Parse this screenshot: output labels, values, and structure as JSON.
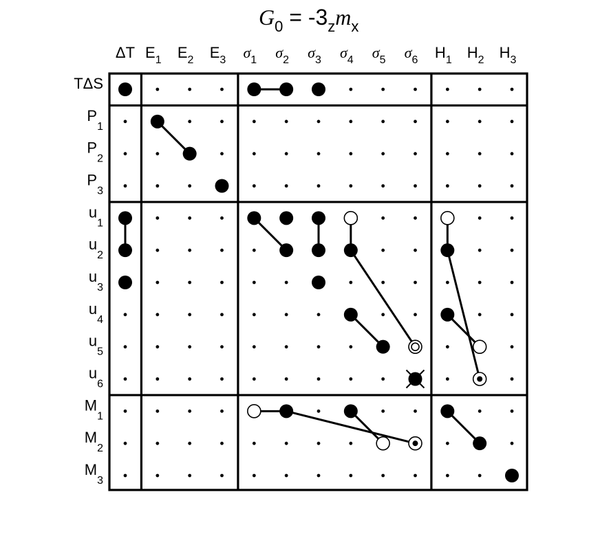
{
  "title": {
    "main": "G",
    "main_sub": "0",
    "eq": " = -3",
    "eq_sub": "z",
    "m": "m",
    "m_sub": "x"
  },
  "columns": [
    {
      "base": "ΔT",
      "sub": "",
      "italic": false
    },
    {
      "base": "E",
      "sub": "1",
      "italic": false
    },
    {
      "base": "E",
      "sub": "2",
      "italic": false
    },
    {
      "base": "E",
      "sub": "3",
      "italic": false
    },
    {
      "base": "σ",
      "sub": "1",
      "italic": true
    },
    {
      "base": "σ",
      "sub": "2",
      "italic": true
    },
    {
      "base": "σ",
      "sub": "3",
      "italic": true
    },
    {
      "base": "σ",
      "sub": "4",
      "italic": true
    },
    {
      "base": "σ",
      "sub": "5",
      "italic": true
    },
    {
      "base": "σ",
      "sub": "6",
      "italic": true
    },
    {
      "base": "H",
      "sub": "1",
      "italic": false
    },
    {
      "base": "H",
      "sub": "2",
      "italic": false
    },
    {
      "base": "H",
      "sub": "3",
      "italic": false
    }
  ],
  "rows": [
    {
      "base": "TΔS",
      "sub": ""
    },
    {
      "base": "P",
      "sub": "1"
    },
    {
      "base": "P",
      "sub": "2"
    },
    {
      "base": "P",
      "sub": "3"
    },
    {
      "base": "u",
      "sub": "1"
    },
    {
      "base": "u",
      "sub": "2"
    },
    {
      "base": "u",
      "sub": "3"
    },
    {
      "base": "u",
      "sub": "4"
    },
    {
      "base": "u",
      "sub": "5"
    },
    {
      "base": "u",
      "sub": "6"
    },
    {
      "base": "M",
      "sub": "1"
    },
    {
      "base": "M",
      "sub": "2"
    },
    {
      "base": "M",
      "sub": "3"
    }
  ],
  "column_groups": [
    [
      0
    ],
    [
      1,
      2,
      3
    ],
    [
      4,
      5,
      6,
      7,
      8,
      9
    ],
    [
      10,
      11,
      12
    ]
  ],
  "row_groups": [
    [
      0
    ],
    [
      1,
      2,
      3
    ],
    [
      4,
      5,
      6,
      7,
      8,
      9
    ],
    [
      10,
      11,
      12
    ]
  ],
  "symbol_legend": {
    "filled": "large filled circle",
    "open": "large open circle",
    "dotted": "open circle with central dot",
    "double": "double concentric circle",
    "crossed": "filled circle with cross",
    "dot": "small dot (zero element)"
  },
  "cells": [
    {
      "row": 0,
      "col": 0,
      "type": "filled"
    },
    {
      "row": 0,
      "col": 4,
      "type": "filled"
    },
    {
      "row": 0,
      "col": 5,
      "type": "filled"
    },
    {
      "row": 0,
      "col": 6,
      "type": "filled"
    },
    {
      "row": 1,
      "col": 1,
      "type": "filled"
    },
    {
      "row": 2,
      "col": 2,
      "type": "filled"
    },
    {
      "row": 3,
      "col": 3,
      "type": "filled"
    },
    {
      "row": 4,
      "col": 0,
      "type": "filled"
    },
    {
      "row": 5,
      "col": 0,
      "type": "filled"
    },
    {
      "row": 6,
      "col": 0,
      "type": "filled"
    },
    {
      "row": 4,
      "col": 4,
      "type": "filled"
    },
    {
      "row": 4,
      "col": 5,
      "type": "filled"
    },
    {
      "row": 4,
      "col": 6,
      "type": "filled"
    },
    {
      "row": 4,
      "col": 7,
      "type": "open"
    },
    {
      "row": 5,
      "col": 5,
      "type": "filled"
    },
    {
      "row": 5,
      "col": 6,
      "type": "filled"
    },
    {
      "row": 5,
      "col": 7,
      "type": "filled"
    },
    {
      "row": 6,
      "col": 6,
      "type": "filled"
    },
    {
      "row": 7,
      "col": 7,
      "type": "filled"
    },
    {
      "row": 8,
      "col": 8,
      "type": "filled"
    },
    {
      "row": 8,
      "col": 9,
      "type": "double"
    },
    {
      "row": 9,
      "col": 9,
      "type": "crossed"
    },
    {
      "row": 4,
      "col": 10,
      "type": "open"
    },
    {
      "row": 5,
      "col": 10,
      "type": "filled"
    },
    {
      "row": 7,
      "col": 10,
      "type": "filled"
    },
    {
      "row": 8,
      "col": 11,
      "type": "open"
    },
    {
      "row": 9,
      "col": 11,
      "type": "dotted"
    },
    {
      "row": 10,
      "col": 4,
      "type": "open"
    },
    {
      "row": 10,
      "col": 5,
      "type": "filled"
    },
    {
      "row": 10,
      "col": 7,
      "type": "filled"
    },
    {
      "row": 11,
      "col": 8,
      "type": "open"
    },
    {
      "row": 11,
      "col": 9,
      "type": "dotted"
    },
    {
      "row": 10,
      "col": 10,
      "type": "filled"
    },
    {
      "row": 11,
      "col": 11,
      "type": "filled"
    },
    {
      "row": 12,
      "col": 12,
      "type": "filled"
    }
  ],
  "connections": [
    {
      "from": [
        0,
        4
      ],
      "to": [
        0,
        5
      ]
    },
    {
      "from": [
        1,
        1
      ],
      "to": [
        2,
        2
      ]
    },
    {
      "from": [
        4,
        0
      ],
      "to": [
        5,
        0
      ]
    },
    {
      "from": [
        4,
        4
      ],
      "to": [
        5,
        5
      ]
    },
    {
      "from": [
        4,
        6
      ],
      "to": [
        5,
        6
      ]
    },
    {
      "from": [
        4,
        7
      ],
      "to": [
        5,
        7
      ]
    },
    {
      "from": [
        5,
        7
      ],
      "to": [
        8,
        9
      ]
    },
    {
      "from": [
        7,
        7
      ],
      "to": [
        8,
        8
      ]
    },
    {
      "from": [
        4,
        10
      ],
      "to": [
        5,
        10
      ]
    },
    {
      "from": [
        5,
        10
      ],
      "to": [
        9,
        11
      ]
    },
    {
      "from": [
        7,
        10
      ],
      "to": [
        8,
        11
      ]
    },
    {
      "from": [
        10,
        4
      ],
      "to": [
        10,
        5
      ]
    },
    {
      "from": [
        10,
        5
      ],
      "to": [
        11,
        9
      ]
    },
    {
      "from": [
        10,
        7
      ],
      "to": [
        11,
        8
      ]
    },
    {
      "from": [
        10,
        10
      ],
      "to": [
        11,
        11
      ]
    }
  ]
}
